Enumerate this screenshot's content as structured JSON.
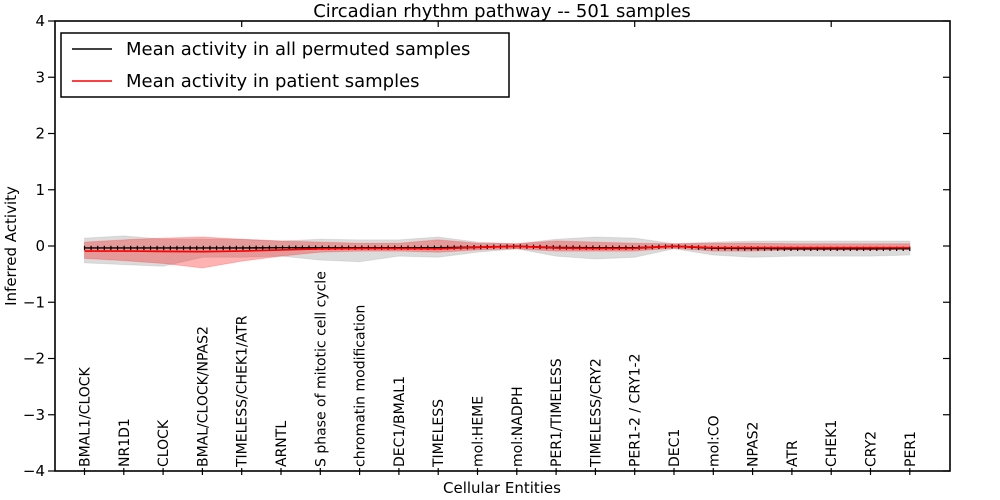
{
  "chart_data": {
    "type": "line",
    "title": "Circadian rhythm pathway -- 501 samples",
    "xlabel": "Cellular Entities",
    "ylabel": "Inferred Activity",
    "ylim": [
      -4,
      4
    ],
    "ytick_labels": [
      "4",
      "3",
      "2",
      "1",
      "0",
      "−1",
      "−2",
      "−3",
      "−4"
    ],
    "grid": false,
    "legend_position": "upper left",
    "categories": [
      "BMAL1/CLOCK",
      "NR1D1",
      "CLOCK",
      "BMAL/CLOCK/NPAS2",
      "TIMELESS/CHEK1/ATR",
      "ARNTL",
      "S phase of mitotic cell cycle",
      "chromatin modification",
      "DEC1/BMAL1",
      "TIMELESS",
      "mol:HEME",
      "mol:NADPH",
      "PER1/TIMELESS",
      "TIMELESS/CRY2",
      "PER1-2 / CRY1-2",
      "DEC1",
      "mol:CO",
      "NPAS2",
      "ATR",
      "CHEK1",
      "CRY2",
      "PER1"
    ],
    "series": [
      {
        "name": "Mean activity in all permuted samples",
        "color": "#000000",
        "band_color": "#999999",
        "band_opacity": 0.35,
        "mean": [
          -0.035,
          -0.035,
          -0.035,
          -0.035,
          -0.035,
          -0.03,
          -0.03,
          -0.03,
          -0.03,
          -0.03,
          -0.02,
          -0.005,
          -0.025,
          -0.03,
          -0.03,
          -0.005,
          -0.04,
          -0.045,
          -0.05,
          -0.05,
          -0.05,
          -0.05
        ],
        "band_upper": [
          0.14,
          0.18,
          0.12,
          0.12,
          0.12,
          0.09,
          0.12,
          0.11,
          0.11,
          0.16,
          0.07,
          0.04,
          0.12,
          0.16,
          0.14,
          0.04,
          0.07,
          0.09,
          0.09,
          0.09,
          0.09,
          0.09
        ],
        "band_lower": [
          -0.3,
          -0.33,
          -0.36,
          -0.2,
          -0.2,
          -0.18,
          -0.25,
          -0.28,
          -0.18,
          -0.2,
          -0.11,
          -0.05,
          -0.18,
          -0.23,
          -0.2,
          -0.05,
          -0.16,
          -0.2,
          -0.18,
          -0.18,
          -0.18,
          -0.16
        ]
      },
      {
        "name": "Mean activity in patient samples",
        "color": "#ff0000",
        "band_color": "#ff0000",
        "band_opacity": 0.3,
        "mean": [
          -0.09,
          -0.09,
          -0.095,
          -0.1,
          -0.09,
          -0.07,
          -0.05,
          -0.045,
          -0.045,
          -0.05,
          -0.025,
          -0.005,
          -0.035,
          -0.045,
          -0.04,
          -0.005,
          -0.03,
          -0.03,
          -0.03,
          -0.03,
          -0.03,
          -0.03
        ],
        "band_upper": [
          0.07,
          0.11,
          0.14,
          0.16,
          0.12,
          0.09,
          0.07,
          0.05,
          0.05,
          0.11,
          0.05,
          0.04,
          0.09,
          0.07,
          0.05,
          0.04,
          0.05,
          0.05,
          0.04,
          0.04,
          0.04,
          0.04
        ],
        "band_lower": [
          -0.22,
          -0.26,
          -0.31,
          -0.39,
          -0.27,
          -0.18,
          -0.11,
          -0.09,
          -0.09,
          -0.11,
          -0.07,
          -0.05,
          -0.09,
          -0.09,
          -0.09,
          -0.04,
          -0.09,
          -0.09,
          -0.07,
          -0.07,
          -0.07,
          -0.05
        ]
      }
    ]
  }
}
